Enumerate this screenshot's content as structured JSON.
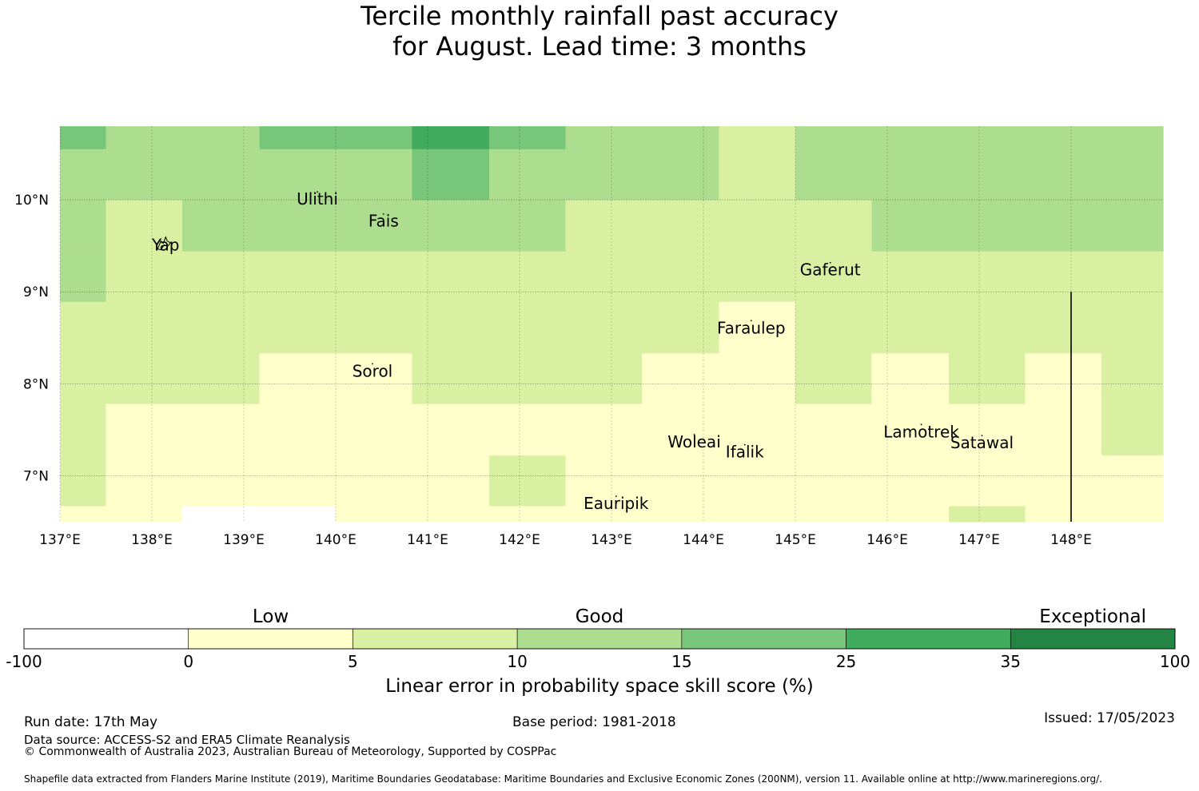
{
  "title": {
    "line1": "Tercile monthly rainfall past accuracy",
    "line2": "for August. Lead time: 3 months"
  },
  "map": {
    "lon_range": [
      137,
      149
    ],
    "lat_range": [
      6.5,
      10.8
    ],
    "lon_ticks": [
      {
        "value": 137,
        "label": "137°E"
      },
      {
        "value": 138,
        "label": "138°E"
      },
      {
        "value": 139,
        "label": "139°E"
      },
      {
        "value": 140,
        "label": "140°E"
      },
      {
        "value": 141,
        "label": "141°E"
      },
      {
        "value": 142,
        "label": "142°E"
      },
      {
        "value": 143,
        "label": "143°E"
      },
      {
        "value": 144,
        "label": "144°E"
      },
      {
        "value": 145,
        "label": "145°E"
      },
      {
        "value": 146,
        "label": "146°E"
      },
      {
        "value": 147,
        "label": "147°E"
      },
      {
        "value": 148,
        "label": "148°E"
      }
    ],
    "lat_ticks": [
      {
        "value": 10,
        "label": "10°N"
      },
      {
        "value": 9,
        "label": "9°N"
      },
      {
        "value": 8,
        "label": "8°N"
      },
      {
        "value": 7,
        "label": "7°N"
      }
    ],
    "gridlines": true,
    "col_edges": [
      137,
      137.5,
      138.33,
      139.17,
      140,
      140.83,
      141.67,
      142.5,
      143.33,
      144.17,
      145,
      145.83,
      146.67,
      147.5,
      148.33,
      149
    ],
    "row_edges": [
      10.8,
      10.55,
      10,
      9.44,
      8.89,
      8.33,
      7.78,
      7.22,
      6.67,
      6.5
    ],
    "skill_classes": [
      [
        3,
        2,
        2,
        3,
        3,
        4,
        3,
        2,
        2,
        1,
        2,
        2,
        2,
        2,
        2
      ],
      [
        2,
        2,
        2,
        2,
        2,
        3,
        2,
        2,
        2,
        1,
        2,
        2,
        2,
        2,
        2
      ],
      [
        2,
        1,
        2,
        2,
        2,
        2,
        2,
        1,
        1,
        1,
        1,
        2,
        2,
        2,
        2
      ],
      [
        2,
        1,
        1,
        1,
        1,
        1,
        1,
        1,
        1,
        1,
        1,
        1,
        1,
        1,
        1
      ],
      [
        1,
        1,
        1,
        1,
        1,
        1,
        1,
        1,
        1,
        0,
        1,
        1,
        1,
        1,
        1
      ],
      [
        1,
        1,
        1,
        0,
        0,
        1,
        1,
        1,
        0,
        0,
        1,
        0,
        1,
        0,
        1
      ],
      [
        1,
        0,
        0,
        0,
        0,
        0,
        0,
        0,
        0,
        0,
        0,
        0,
        0,
        0,
        1
      ],
      [
        1,
        0,
        0,
        0,
        0,
        0,
        1,
        0,
        0,
        0,
        0,
        0,
        0,
        0,
        0
      ],
      [
        0,
        0,
        -1,
        -1,
        0,
        0,
        0,
        0,
        0,
        0,
        0,
        0,
        1,
        0,
        0
      ]
    ],
    "boundary_line_lon": 148,
    "boundary_line_lat_range": [
      6.5,
      9.0
    ],
    "places": [
      {
        "name": "Ulithi",
        "lon": 139.8,
        "lat": 10.0
      },
      {
        "name": "Fais",
        "lon": 140.52,
        "lat": 9.76
      },
      {
        "name": "Yap",
        "lon": 138.15,
        "lat": 9.5
      },
      {
        "name": "Gaferut",
        "lon": 145.38,
        "lat": 9.23
      },
      {
        "name": "Faraulep",
        "lon": 144.52,
        "lat": 8.6
      },
      {
        "name": "Sorol",
        "lon": 140.4,
        "lat": 8.13
      },
      {
        "name": "Woleai",
        "lon": 143.9,
        "lat": 7.36
      },
      {
        "name": "Ifalik",
        "lon": 144.45,
        "lat": 7.25
      },
      {
        "name": "Lamotrek",
        "lon": 146.37,
        "lat": 7.47
      },
      {
        "name": "Satawal",
        "lon": 147.03,
        "lat": 7.35
      },
      {
        "name": "Eauripik",
        "lon": 143.05,
        "lat": 6.69
      }
    ]
  },
  "colorbar": {
    "categories": [
      {
        "label": "Low",
        "at": 1
      },
      {
        "label": "Good",
        "at": 3
      },
      {
        "label": "Exceptional",
        "at": 6
      }
    ],
    "bins": [
      {
        "color": "#ffffff"
      },
      {
        "color": "#ffffcc"
      },
      {
        "color": "#d9f0a3"
      },
      {
        "color": "#addd8e"
      },
      {
        "color": "#78c679"
      },
      {
        "color": "#41ab5d"
      },
      {
        "color": "#238443"
      }
    ],
    "ticks": [
      "-100",
      "0",
      "5",
      "10",
      "15",
      "25",
      "35",
      "100"
    ],
    "label": "Linear error in probability space skill score (%)"
  },
  "footer": {
    "run_date": "Run date: 17th May",
    "base_period": "Base period: 1981-2018",
    "issued": "Issued: 17/05/2023",
    "data_source": "Data source: ACCESS-S2 and ERA5 Climate Reanalysis",
    "copyright": "© Commonwealth of Australia 2023, Australian Bureau of Meteorology, Supported by COSPPac",
    "shapefile": "Shapefile data extracted from Flanders Marine Institute (2019), Maritime Boundaries Geodatabase: Maritime Boundaries and Exclusive Economic Zones (200NM), version 11. Available online at http://www.marineregions.org/."
  }
}
